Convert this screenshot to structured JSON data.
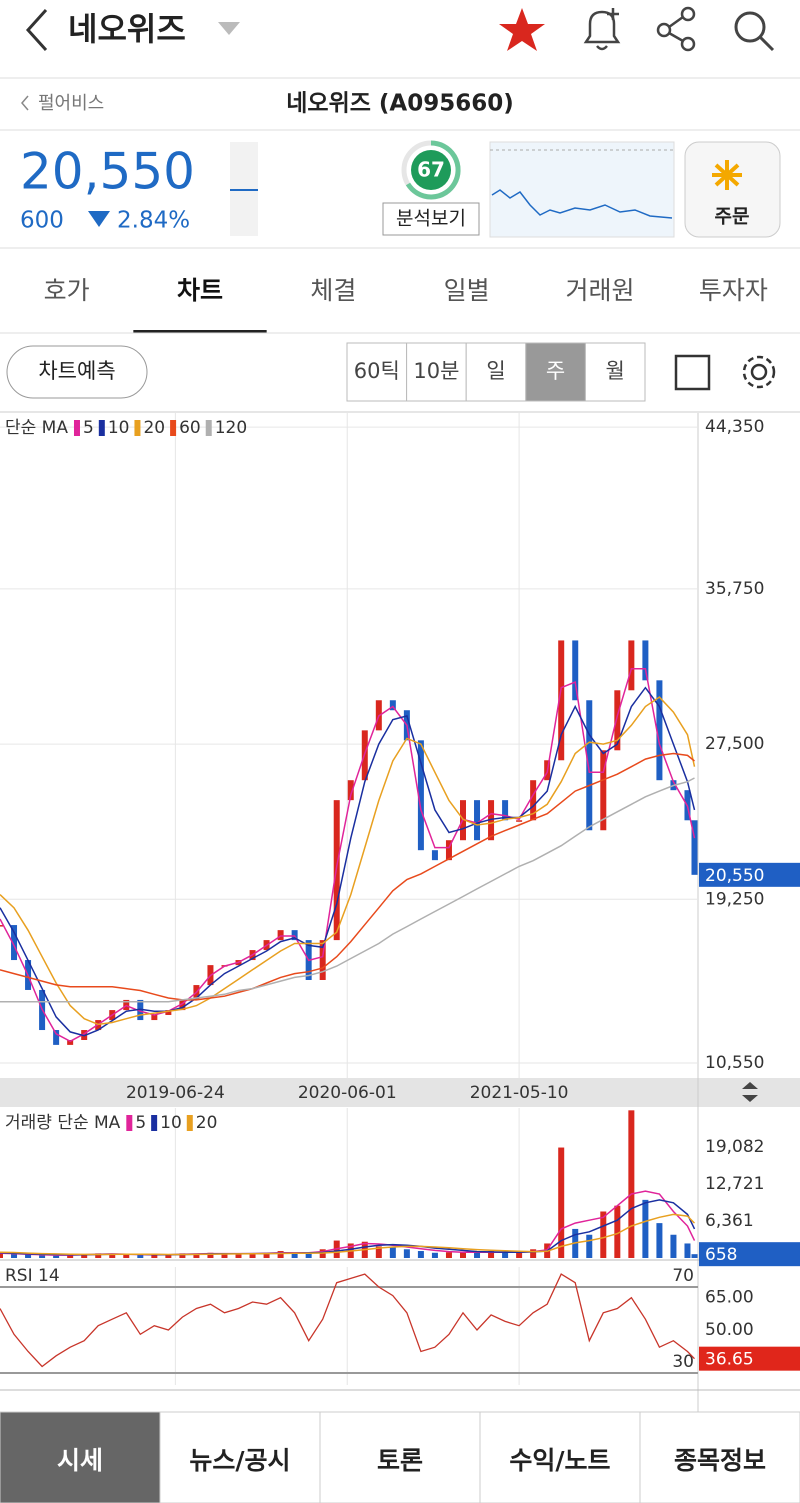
{
  "header": {
    "title": "네오위즈"
  },
  "subheader": {
    "back": "펄어비스",
    "name": "네오위즈 (A095660)"
  },
  "quote": {
    "price": "20,550",
    "change": "600",
    "change_pct": "2.84%",
    "score": "67",
    "analysis": "분석보기",
    "order": "주문"
  },
  "tabs": [
    "호가",
    "차트",
    "체결",
    "일별",
    "거래원",
    "투자자"
  ],
  "toolbar": {
    "predict": "차트예측",
    "periods": [
      "60틱",
      "10분",
      "일",
      "주",
      "월"
    ]
  },
  "chart_data": [
    {
      "type": "candlestick",
      "legend_title": "단순 MA",
      "up_color": "#d9271e",
      "down_color": "#1f5fc4",
      "x": [
        0,
        4,
        8,
        12,
        16,
        20,
        24,
        28,
        32,
        36,
        40,
        44,
        48,
        52,
        56,
        60,
        64,
        68,
        72,
        76,
        80,
        84,
        88,
        92,
        96,
        100,
        104,
        108,
        112,
        116,
        120,
        124,
        128,
        132,
        136,
        140,
        144,
        148,
        152,
        156,
        160,
        164,
        168,
        172,
        176,
        180,
        184,
        188,
        192,
        196,
        198
      ],
      "xlim": [
        0,
        199
      ],
      "xticks": [
        {
          "value": 50,
          "label": "2019-06-24"
        },
        {
          "value": 99,
          "label": "2020-06-01"
        },
        {
          "value": 148,
          "label": "2021-05-10"
        }
      ],
      "ylim": [
        9750,
        45100
      ],
      "yticks": [
        {
          "value": 10550,
          "label": "10,550"
        },
        {
          "value": 19250,
          "label": "19,250"
        },
        {
          "value": 27500,
          "label": "27,500"
        },
        {
          "value": 35750,
          "label": "35,750"
        },
        {
          "value": 44350,
          "label": "44,350"
        }
      ],
      "grid": true,
      "close": [
        17880,
        16020,
        14430,
        12300,
        11510,
        11770,
        12300,
        12830,
        13360,
        13900,
        12830,
        13100,
        13360,
        13900,
        14690,
        15750,
        15750,
        16020,
        16550,
        17080,
        17610,
        17080,
        14960,
        17080,
        24520,
        25580,
        28230,
        29830,
        29300,
        27700,
        21860,
        21330,
        22390,
        24520,
        22390,
        24520,
        23450,
        23450,
        25580,
        26640,
        33010,
        29830,
        22920,
        27170,
        30360,
        33010,
        30890,
        25580,
        25050,
        23450,
        20550
      ],
      "series": [
        {
          "name": "5",
          "color": "#e0249a",
          "values": [
            18200,
            16800,
            15200,
            13400,
            12100,
            11700,
            12100,
            12600,
            13100,
            13600,
            13300,
            13100,
            13300,
            13700,
            14300,
            15200,
            15700,
            15900,
            16300,
            16800,
            17300,
            17300,
            16000,
            16200,
            21000,
            24800,
            27000,
            29000,
            29500,
            28500,
            24000,
            22000,
            22000,
            23500,
            23300,
            23800,
            23700,
            23500,
            24800,
            26000,
            30500,
            30800,
            26000,
            26000,
            29000,
            31500,
            31500,
            27500,
            25500,
            24200,
            22500
          ]
        },
        {
          "name": "10",
          "color": "#1a2fa0",
          "values": [
            18800,
            17500,
            16000,
            14500,
            13000,
            12200,
            12000,
            12300,
            12800,
            13300,
            13400,
            13300,
            13300,
            13500,
            14000,
            14700,
            15300,
            15700,
            16100,
            16500,
            17000,
            17200,
            16800,
            16700,
            19000,
            22500,
            25500,
            27500,
            28800,
            29000,
            26500,
            24000,
            22800,
            23000,
            23300,
            23500,
            23600,
            23600,
            24200,
            25000,
            28000,
            29500,
            28000,
            27000,
            27500,
            29500,
            30500,
            29500,
            27500,
            25500,
            24000
          ]
        },
        {
          "name": "20",
          "color": "#e8a020",
          "values": [
            19500,
            18800,
            17600,
            16200,
            14800,
            13600,
            12900,
            12600,
            12700,
            12900,
            13100,
            13200,
            13300,
            13400,
            13600,
            14000,
            14500,
            15000,
            15500,
            16000,
            16500,
            16900,
            16900,
            16900,
            17500,
            19500,
            22000,
            24500,
            26600,
            27800,
            27500,
            26000,
            24500,
            23500,
            23200,
            23300,
            23500,
            23600,
            23800,
            24300,
            25500,
            27000,
            27600,
            27500,
            27700,
            28500,
            29500,
            30000,
            29200,
            28000,
            26300
          ]
        },
        {
          "name": "60",
          "color": "#e84a1c",
          "values": [
            15500,
            15300,
            15100,
            14900,
            14700,
            14600,
            14600,
            14600,
            14600,
            14500,
            14400,
            14200,
            14000,
            13900,
            13900,
            14000,
            14100,
            14300,
            14500,
            14800,
            15100,
            15300,
            15400,
            15600,
            16200,
            17000,
            17900,
            18800,
            19700,
            20300,
            20600,
            21000,
            21400,
            21800,
            22200,
            22600,
            22900,
            23200,
            23500,
            23800,
            24400,
            25000,
            25300,
            25600,
            25900,
            26300,
            26700,
            26900,
            27000,
            26900,
            26600
          ]
        },
        {
          "name": "120",
          "color": "#b0b0b0",
          "values": [
            13800,
            13800,
            13800,
            13800,
            13800,
            13800,
            13800,
            13800,
            13800,
            13800,
            13800,
            13800,
            13800,
            13900,
            14000,
            14100,
            14200,
            14400,
            14500,
            14700,
            14900,
            15100,
            15200,
            15400,
            15700,
            16100,
            16500,
            16900,
            17400,
            17800,
            18200,
            18600,
            19000,
            19400,
            19800,
            20200,
            20600,
            21000,
            21300,
            21700,
            22100,
            22600,
            23100,
            23500,
            23900,
            24300,
            24700,
            25000,
            25300,
            25500,
            25700
          ]
        }
      ],
      "last": {
        "value": 20550,
        "label": "20,550"
      }
    },
    {
      "type": "bar",
      "legend_title": "거래량 단순 MA",
      "ylim": [
        0,
        25800
      ],
      "yticks": [
        {
          "value": 6361,
          "label": "6,361"
        },
        {
          "value": 12721,
          "label": "12,721"
        },
        {
          "value": 19082,
          "label": "19,082"
        }
      ],
      "values": [
        900,
        700,
        600,
        500,
        400,
        500,
        600,
        800,
        700,
        600,
        500,
        500,
        600,
        800,
        700,
        900,
        600,
        800,
        700,
        900,
        1200,
        800,
        900,
        1500,
        3000,
        2500,
        2800,
        2000,
        1800,
        1500,
        1200,
        900,
        1000,
        1100,
        900,
        1200,
        1000,
        900,
        1500,
        2500,
        19000,
        5000,
        4000,
        8000,
        9000,
        25400,
        10000,
        6000,
        4000,
        2500,
        658
      ],
      "series": [
        {
          "name": "5",
          "color": "#e0249a",
          "values": [
            800,
            750,
            650,
            550,
            500,
            500,
            550,
            650,
            700,
            650,
            600,
            550,
            550,
            650,
            700,
            750,
            750,
            750,
            750,
            800,
            900,
            900,
            900,
            1100,
            1600,
            2000,
            2500,
            2400,
            2200,
            1900,
            1600,
            1300,
            1100,
            1000,
            1000,
            1000,
            1000,
            1000,
            1100,
            1400,
            5000,
            6000,
            6500,
            7000,
            9000,
            11000,
            11500,
            11000,
            8000,
            5500,
            3000
          ]
        },
        {
          "name": "10",
          "color": "#1a2fa0",
          "values": [
            900,
            800,
            700,
            650,
            600,
            550,
            550,
            600,
            650,
            650,
            620,
            580,
            560,
            600,
            650,
            700,
            720,
            740,
            760,
            780,
            820,
            850,
            870,
            950,
            1200,
            1500,
            1900,
            2200,
            2300,
            2200,
            2000,
            1700,
            1500,
            1300,
            1100,
            1050,
            1000,
            1000,
            1050,
            1200,
            3000,
            4000,
            4500,
            5500,
            6500,
            8500,
            9500,
            10000,
            9500,
            7500,
            5000
          ]
        },
        {
          "name": "20",
          "color": "#e8a020",
          "values": [
            1000,
            950,
            850,
            750,
            700,
            650,
            620,
            600,
            620,
            640,
            640,
            630,
            610,
            600,
            620,
            650,
            680,
            700,
            720,
            750,
            780,
            800,
            820,
            860,
            1000,
            1200,
            1450,
            1700,
            1900,
            2000,
            2000,
            1900,
            1750,
            1600,
            1450,
            1350,
            1250,
            1150,
            1100,
            1150,
            2000,
            2600,
            3000,
            3500,
            4200,
            5500,
            6300,
            7000,
            7500,
            7200,
            6000
          ]
        }
      ],
      "last": 658
    },
    {
      "type": "line",
      "title": "RSI 14",
      "color": "#c8352a",
      "ylim": [
        24.4,
        79.3
      ],
      "yticks": [
        {
          "value": 50,
          "label": "50.00"
        },
        {
          "value": 65,
          "label": "65.00"
        }
      ],
      "levels": [
        70,
        30
      ],
      "values": [
        60,
        48,
        40,
        33,
        38,
        42,
        45,
        52,
        55,
        58,
        48,
        52,
        50,
        56,
        60,
        62,
        58,
        60,
        63,
        62,
        65,
        58,
        45,
        55,
        72,
        74,
        76,
        70,
        66,
        58,
        40,
        42,
        48,
        58,
        50,
        57,
        54,
        52,
        58,
        62,
        76,
        72,
        45,
        58,
        60,
        65,
        55,
        42,
        45,
        40,
        36.65
      ],
      "last": {
        "value": 36.65,
        "label": "36.65"
      }
    }
  ],
  "nav": [
    "시세",
    "뉴스/공시",
    "토론",
    "수익/노트",
    "종목정보"
  ]
}
